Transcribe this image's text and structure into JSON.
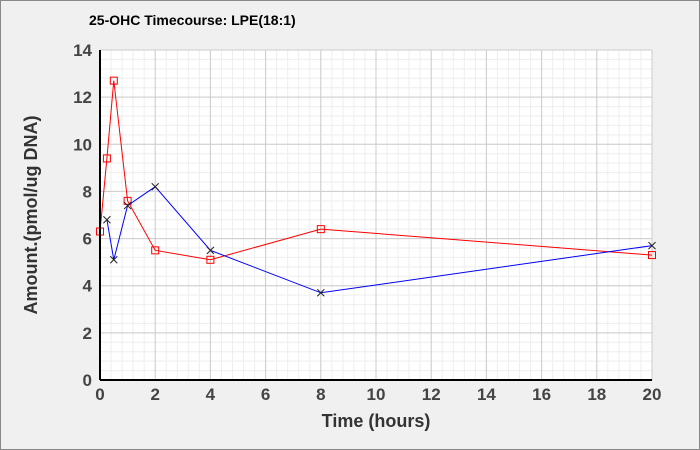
{
  "chart_data": {
    "type": "line",
    "title": "25-OHC Timecourse: LPE(18:1)",
    "xlabel": "Time (hours)",
    "ylabel": "Amount.(pmol/ug DNA)",
    "xlim": [
      0,
      20
    ],
    "ylim": [
      0,
      14
    ],
    "xticks": [
      0,
      2,
      4,
      6,
      8,
      10,
      12,
      14,
      16,
      18,
      20
    ],
    "yticks": [
      0,
      2,
      4,
      6,
      8,
      10,
      12,
      14
    ],
    "grid": true,
    "series": [
      {
        "name": "series-red",
        "color": "#ff0000",
        "marker": "square",
        "x": [
          0,
          0.25,
          0.5,
          1,
          2,
          4,
          8,
          20
        ],
        "y": [
          6.3,
          9.4,
          12.7,
          7.6,
          5.5,
          5.1,
          6.4,
          5.3
        ]
      },
      {
        "name": "series-blue",
        "color": "#0000ff",
        "marker": "x",
        "x": [
          0.25,
          0.5,
          1,
          2,
          4,
          8,
          20
        ],
        "y": [
          6.8,
          5.1,
          7.4,
          8.2,
          5.5,
          3.7,
          5.7
        ]
      }
    ]
  }
}
